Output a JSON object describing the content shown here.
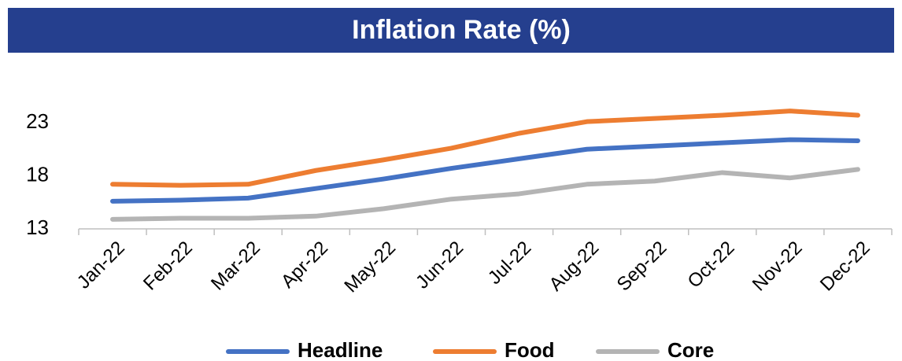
{
  "chart_data": {
    "type": "line",
    "title": "Inflation Rate (%)",
    "categories": [
      "Jan-22",
      "Feb-22",
      "Mar-22",
      "Apr-22",
      "May-22",
      "Jun-22",
      "Jul-22",
      "Aug-22",
      "Sep-22",
      "Oct-22",
      "Nov-22",
      "Dec-22"
    ],
    "series": [
      {
        "name": "Headline",
        "color": "#4472c4",
        "values": [
          15.6,
          15.7,
          15.9,
          16.8,
          17.7,
          18.7,
          19.6,
          20.5,
          20.8,
          21.1,
          21.4,
          21.3
        ]
      },
      {
        "name": "Food",
        "color": "#ed7d31",
        "values": [
          17.2,
          17.1,
          17.2,
          18.5,
          19.5,
          20.6,
          22.0,
          23.1,
          23.4,
          23.7,
          24.1,
          23.7
        ]
      },
      {
        "name": "Core",
        "color": "#b4b4b4",
        "values": [
          13.9,
          14.0,
          14.0,
          14.2,
          14.9,
          15.8,
          16.3,
          17.2,
          17.5,
          18.3,
          17.8,
          18.6
        ]
      }
    ],
    "ylim": [
      13,
      27
    ],
    "yticks": [
      13,
      18,
      23
    ],
    "grid": false,
    "legend": "bottom"
  }
}
